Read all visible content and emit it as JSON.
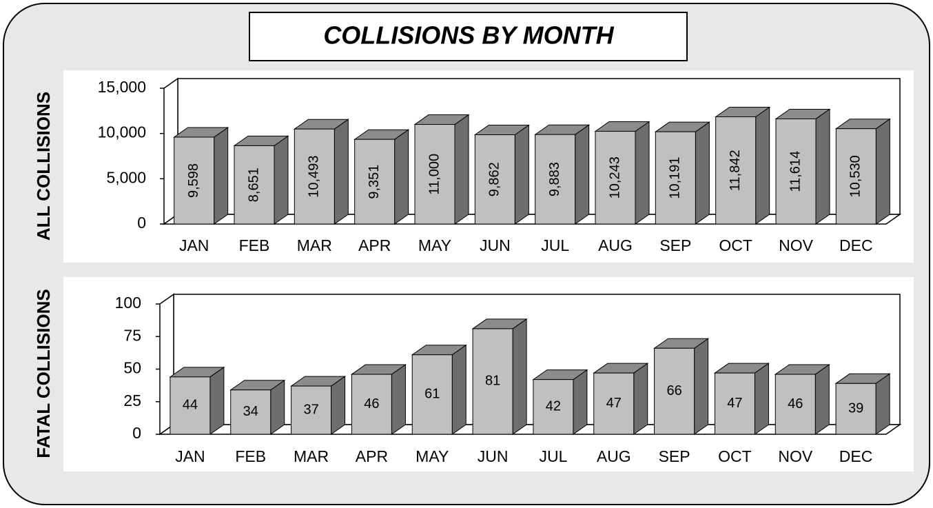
{
  "title": "COLLISIONS BY MONTH",
  "chart_data": [
    {
      "type": "bar",
      "ylabel": "ALL COLLISIONS",
      "categories": [
        "JAN",
        "FEB",
        "MAR",
        "APR",
        "MAY",
        "JUN",
        "JUL",
        "AUG",
        "SEP",
        "OCT",
        "NOV",
        "DEC"
      ],
      "values": [
        9598,
        8651,
        10493,
        9351,
        11000,
        9862,
        9883,
        10243,
        10191,
        11842,
        11614,
        10530
      ],
      "value_labels": [
        "9,598",
        "8,651",
        "10,493",
        "9,351",
        "11,000",
        "9,862",
        "9,883",
        "10,243",
        "10,191",
        "11,842",
        "11,614",
        "10,530"
      ],
      "color": "#c0c0c0",
      "ylim": [
        0,
        15000
      ],
      "yticks": [
        0,
        {
          "value": 5000,
          "label": "5,000"
        },
        {
          "value": 10000,
          "label": "10,000"
        },
        {
          "value": 15000,
          "label": "15,000"
        }
      ]
    },
    {
      "type": "bar",
      "ylabel": "FATAL COLLISIONS",
      "categories": [
        "JAN",
        "FEB",
        "MAR",
        "APR",
        "MAY",
        "JUN",
        "JUL",
        "AUG",
        "SEP",
        "OCT",
        "NOV",
        "DEC"
      ],
      "values": [
        44,
        34,
        37,
        46,
        61,
        81,
        42,
        47,
        66,
        47,
        46,
        39
      ],
      "color": "#c0c0c0",
      "ylim": [
        0,
        100
      ],
      "yticks": [
        0,
        25,
        50,
        75,
        100
      ]
    }
  ]
}
